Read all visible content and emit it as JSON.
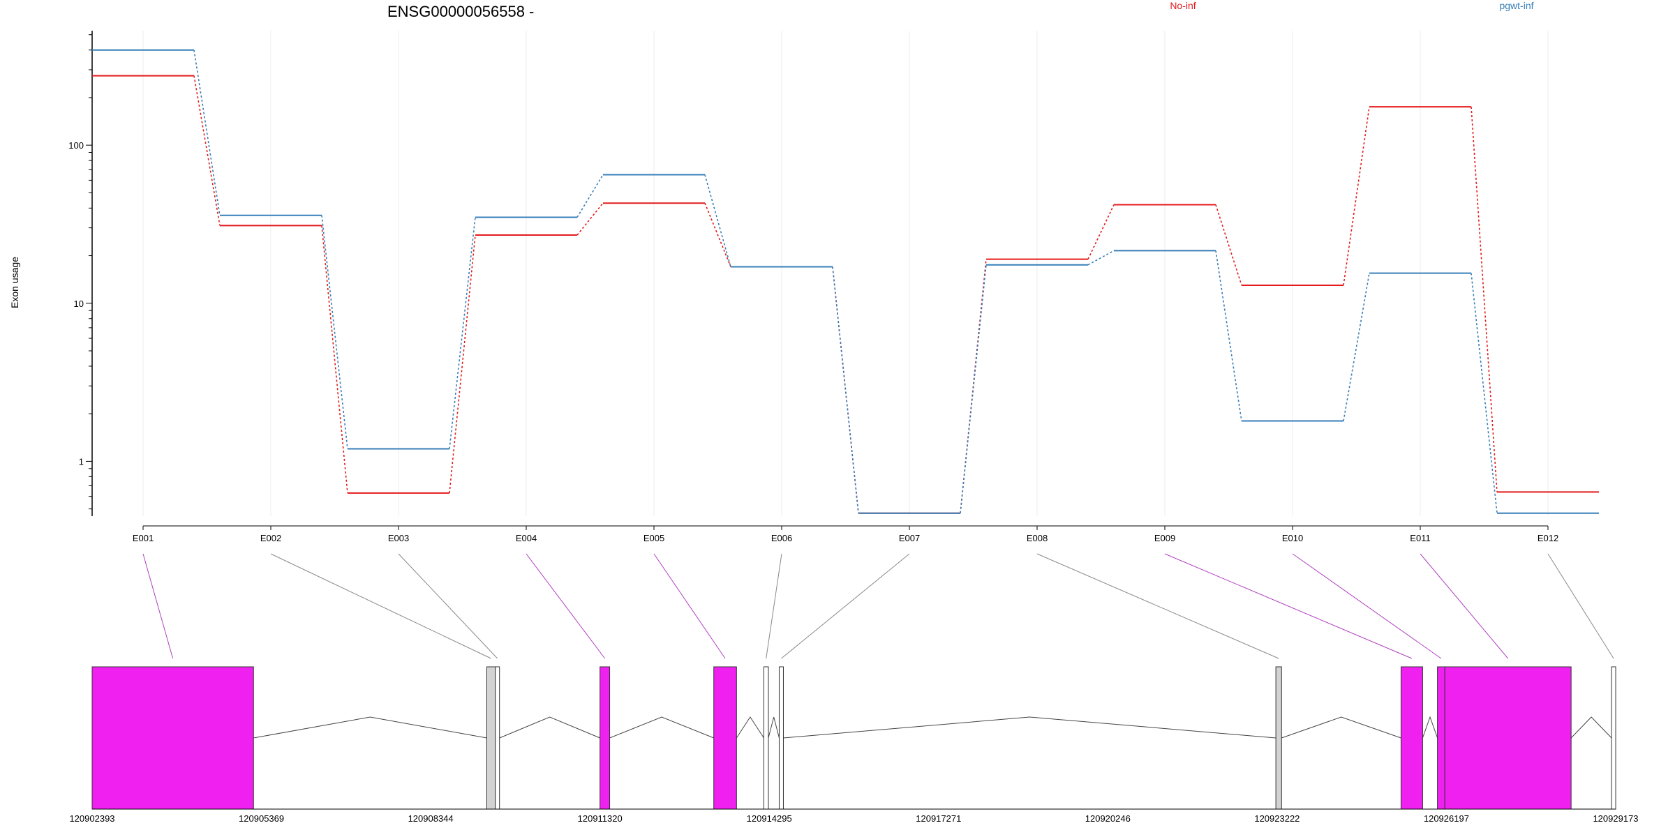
{
  "chart_data": {
    "type": "line",
    "title": "ENSG00000056558 -",
    "ylabel": "Exon usage",
    "xlabel": "",
    "yscale": "log",
    "ylim": [
      0.45,
      530
    ],
    "y_ticks": [
      "1",
      "10",
      "100"
    ],
    "y_tick_values": [
      1,
      10,
      100
    ],
    "categories": [
      "E001",
      "E002",
      "E003",
      "E004",
      "E005",
      "E006",
      "E007",
      "E008",
      "E009",
      "E010",
      "E011",
      "E012"
    ],
    "series": [
      {
        "name": "No-inf",
        "color": "#e41a1c",
        "values": [
          275,
          31,
          0.63,
          27,
          43,
          17,
          0.47,
          19,
          42,
          13,
          175,
          0.64
        ]
      },
      {
        "name": "pgwt-inf",
        "color": "#377eb8",
        "values": [
          400,
          36,
          1.2,
          35,
          65,
          17,
          0.47,
          17.5,
          21.5,
          1.8,
          15.5,
          0.47
        ]
      }
    ],
    "vertical_grid": true,
    "legend_placement": "top",
    "gene_model": {
      "coordinate_ticks": [
        "120902393",
        "120905369",
        "120908344",
        "120911320",
        "120914295",
        "120917271",
        "120920246",
        "120923222",
        "120926197",
        "120929173"
      ],
      "coordinate_tick_values": [
        120902393,
        120905369,
        120908344,
        120911320,
        120914295,
        120917271,
        120920246,
        120923222,
        120926197,
        120929173
      ],
      "range": [
        120902393,
        120929173
      ],
      "exons": [
        {
          "id": "E001",
          "start": 120902393,
          "end": 120905230,
          "significant": true
        },
        {
          "id": "E002",
          "start": 120909330,
          "end": 120909480,
          "significant": false
        },
        {
          "id": "E003",
          "start": 120909480,
          "end": 120909550,
          "significant": false
        },
        {
          "id": "E004",
          "start": 120911320,
          "end": 120911490,
          "significant": true
        },
        {
          "id": "E005",
          "start": 120913320,
          "end": 120913720,
          "significant": true
        },
        {
          "id": "E006",
          "start": 120914200,
          "end": 120914280,
          "significant": false
        },
        {
          "id": "E007",
          "start": 120914470,
          "end": 120914540,
          "significant": false
        },
        {
          "id": "E008",
          "start": 120923200,
          "end": 120923300,
          "significant": false
        },
        {
          "id": "E009",
          "start": 120925400,
          "end": 120925780,
          "significant": true
        },
        {
          "id": "E010",
          "start": 120926040,
          "end": 120926170,
          "significant": true
        },
        {
          "id": "E011",
          "start": 120926170,
          "end": 120928390,
          "significant": true
        },
        {
          "id": "E012",
          "start": 120929100,
          "end": 120929173,
          "significant": false
        }
      ],
      "highlight_color": "#f020f0",
      "neutral_color": "#d3d3d3"
    }
  }
}
